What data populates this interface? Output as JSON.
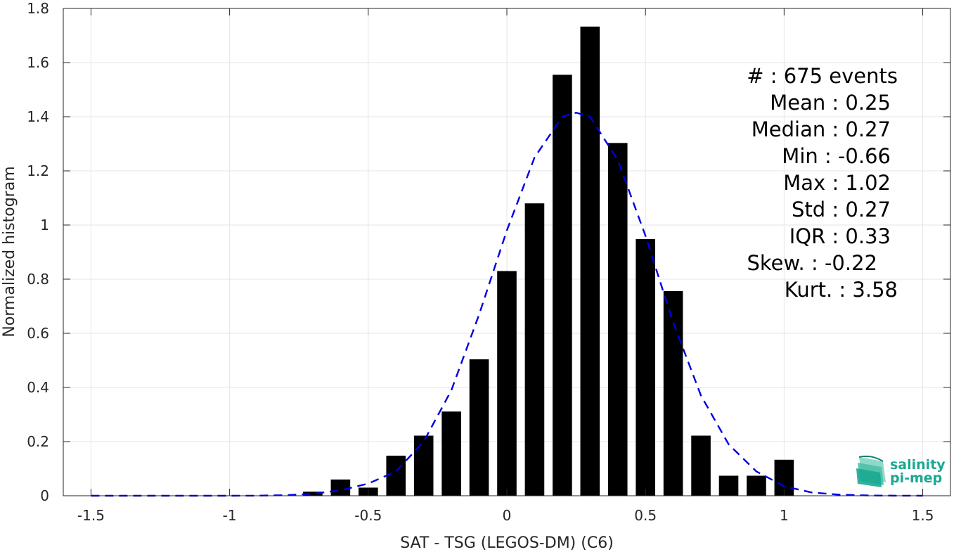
{
  "chart_data": {
    "type": "bar",
    "xlabel": "SAT - TSG (LEGOS-DM) (C6)",
    "ylabel": "Normalized histogram",
    "xlim": [
      -1.6,
      1.6
    ],
    "ylim": [
      0,
      1.8
    ],
    "xticks": [
      -1.5,
      -1,
      -0.5,
      0,
      0.5,
      1,
      1.5
    ],
    "xtick_labels": [
      "-1.5",
      "-1",
      "-0.5",
      "0",
      "0.5",
      "1",
      "1.5"
    ],
    "yticks": [
      0,
      0.2,
      0.4,
      0.6,
      0.8,
      1,
      1.2,
      1.4,
      1.6,
      1.8
    ],
    "ytick_labels": [
      "0",
      "0.2",
      "0.4",
      "0.6",
      "0.8",
      "1",
      "1.2",
      "1.4",
      "1.6",
      "1.8"
    ],
    "grid": true,
    "bar_width": 0.07,
    "bars": {
      "x": [
        -0.7,
        -0.6,
        -0.5,
        -0.4,
        -0.3,
        -0.2,
        -0.1,
        0.0,
        0.1,
        0.2,
        0.3,
        0.4,
        0.5,
        0.6,
        0.7,
        0.8,
        0.9,
        1.0
      ],
      "values": [
        0.015,
        0.06,
        0.03,
        0.148,
        0.222,
        0.311,
        0.504,
        0.83,
        1.08,
        1.555,
        1.733,
        1.303,
        0.948,
        0.756,
        0.222,
        0.074,
        0.074,
        0.133
      ],
      "color": "#000000"
    },
    "fit_curve": {
      "style": "dashed",
      "color": "#0000e0",
      "x": [
        -1.5,
        -1.4,
        -1.3,
        -1.2,
        -1.1,
        -1.0,
        -0.9,
        -0.8,
        -0.7,
        -0.6,
        -0.5,
        -0.4,
        -0.3,
        -0.2,
        -0.1,
        0.0,
        0.1,
        0.2,
        0.25,
        0.3,
        0.4,
        0.5,
        0.6,
        0.7,
        0.8,
        0.9,
        1.0,
        1.1,
        1.2,
        1.3,
        1.4,
        1.5
      ],
      "y": [
        0,
        0,
        0,
        0,
        0,
        0,
        0.0003,
        0.002,
        0.007,
        0.02,
        0.045,
        0.09,
        0.2,
        0.39,
        0.67,
        0.98,
        1.25,
        1.4,
        1.415,
        1.4,
        1.24,
        0.96,
        0.64,
        0.37,
        0.19,
        0.09,
        0.035,
        0.012,
        0.004,
        0.001,
        0.0003,
        0
      ]
    }
  },
  "stats": [
    {
      "text": "#  : 675 events"
    },
    {
      "text": "Mean : 0.25"
    },
    {
      "text": "Median : 0.27"
    },
    {
      "text": "Min : -0.66"
    },
    {
      "text": "Max : 1.02"
    },
    {
      "text": "Std : 0.27"
    },
    {
      "text": "IQR : 0.33"
    },
    {
      "text": "Skew. : -0.22"
    },
    {
      "text": "Kurt. : 3.58"
    }
  ],
  "logo": {
    "line1": "salinity",
    "line2": "pi-mep",
    "color": "#1aa891"
  }
}
